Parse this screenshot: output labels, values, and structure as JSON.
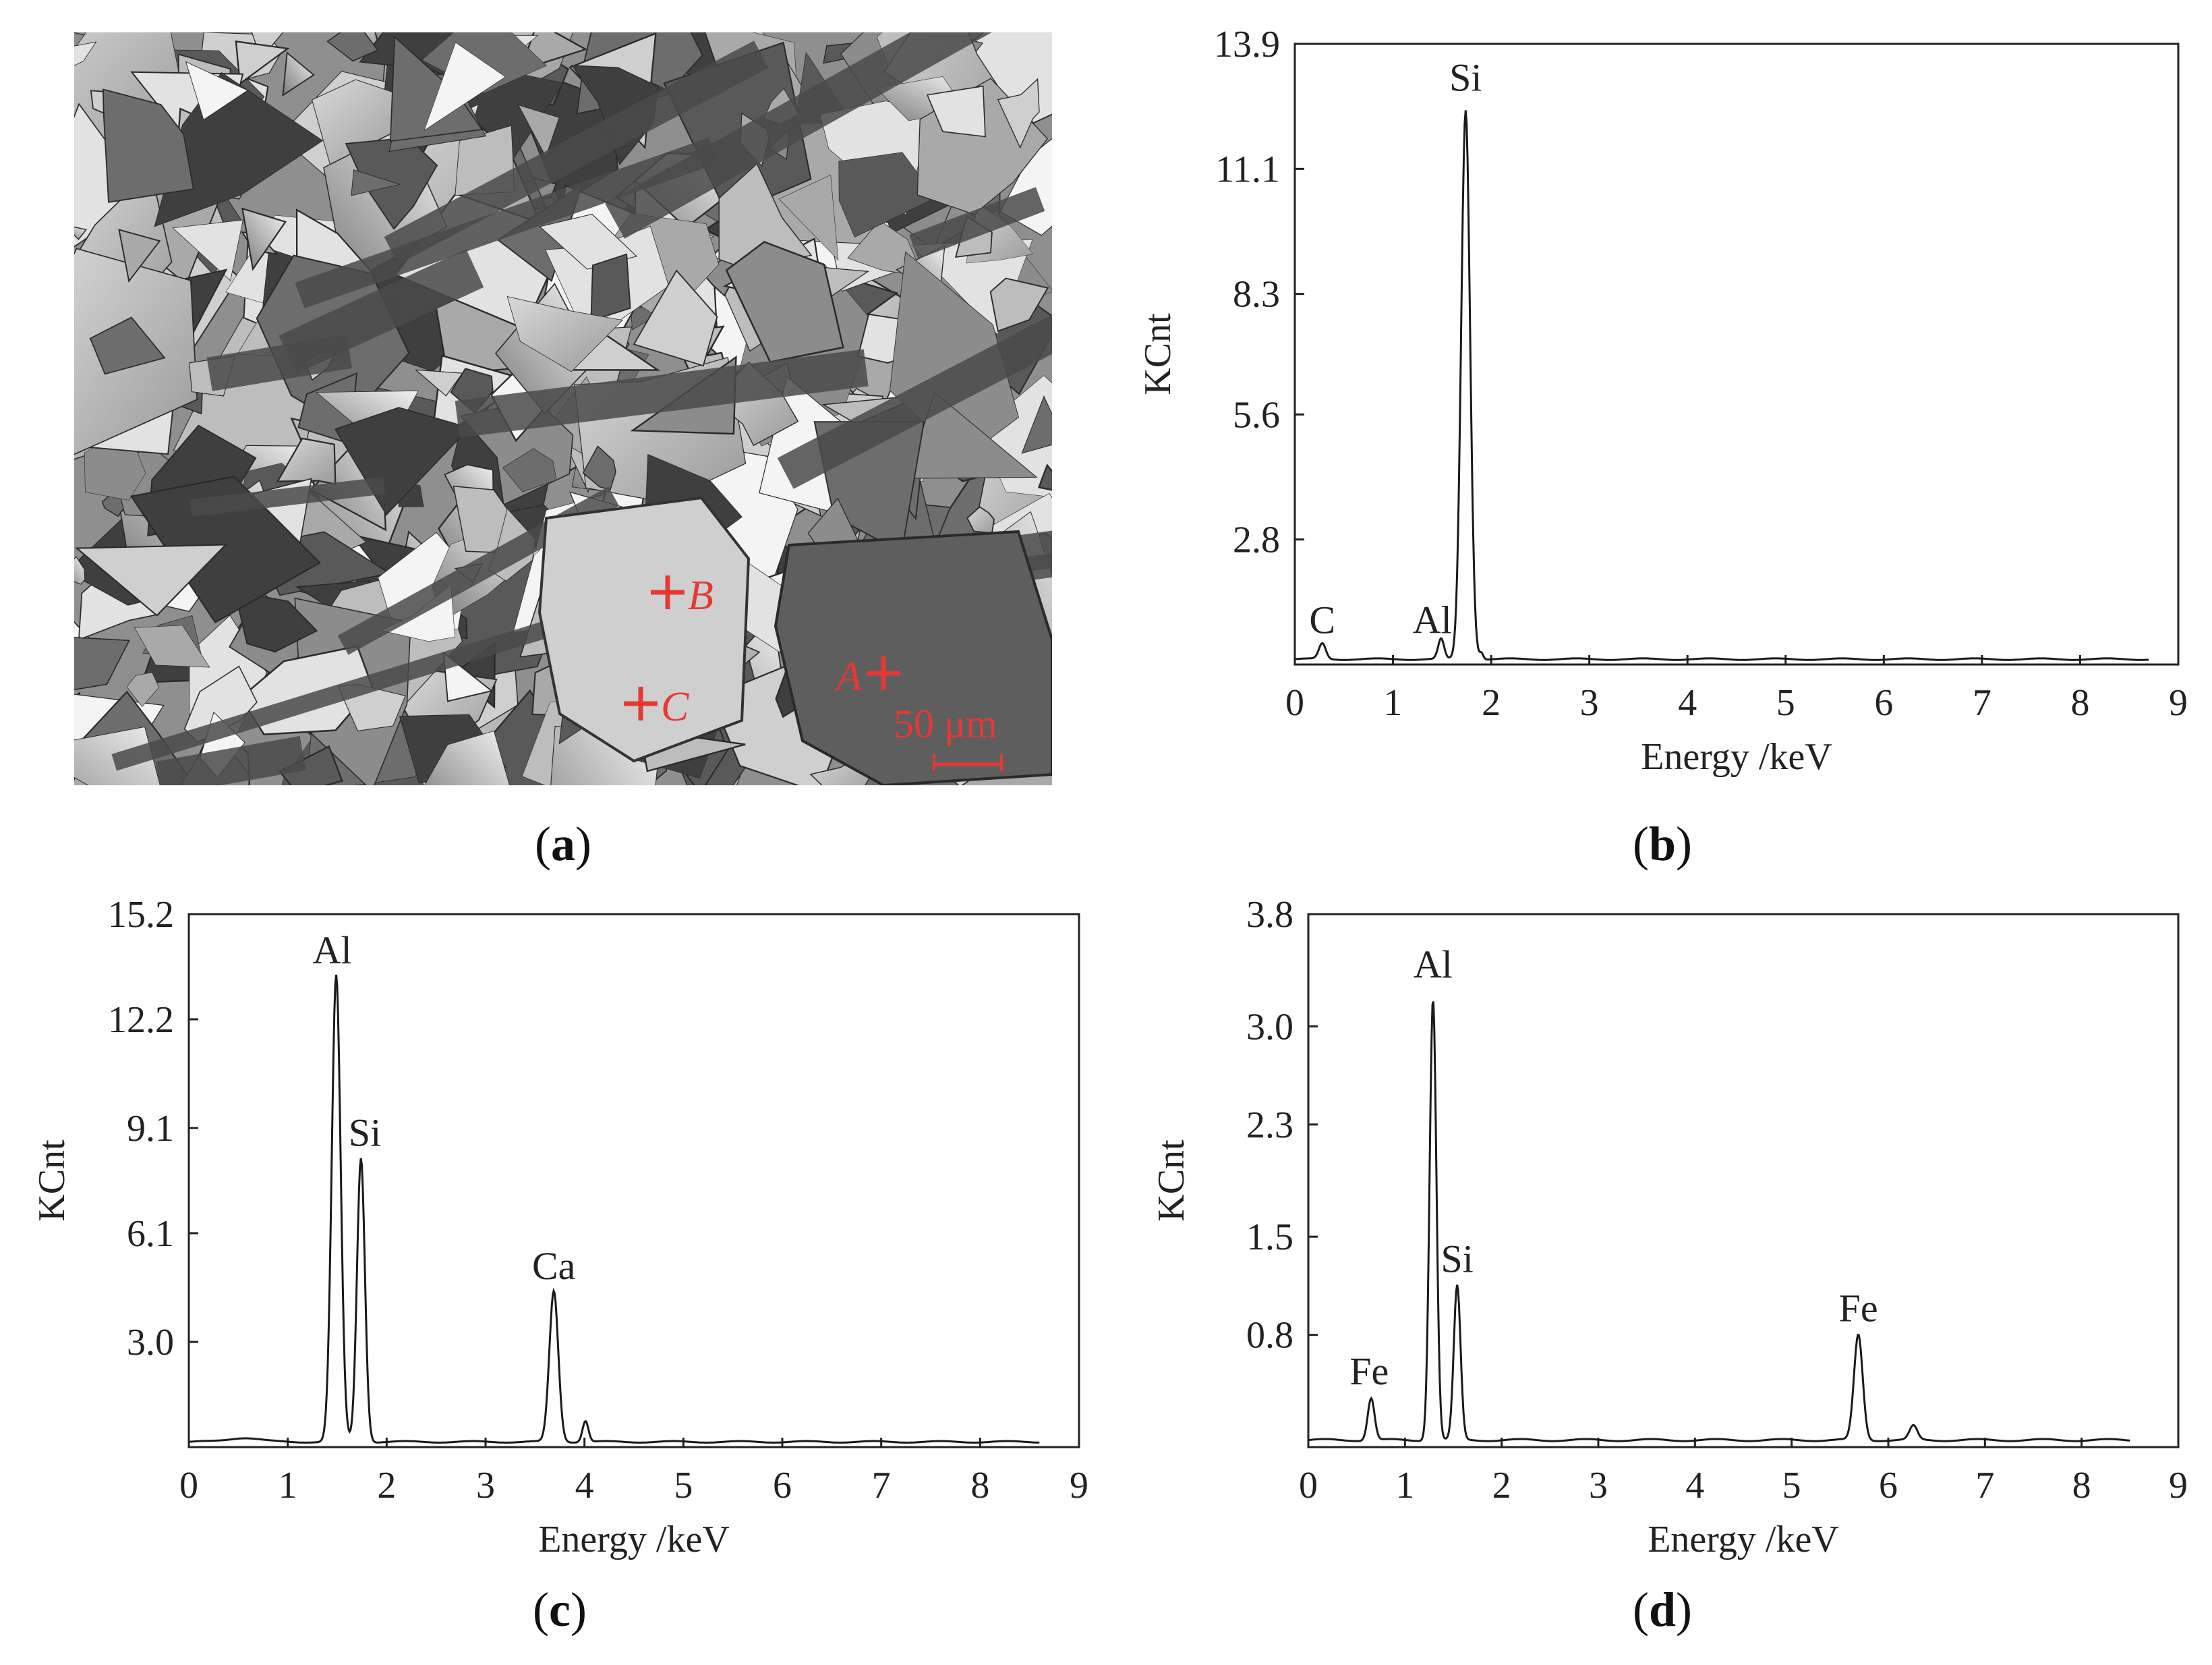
{
  "panels": {
    "a": {
      "caption_letter": "a",
      "markers": [
        "B",
        "C",
        "A"
      ],
      "scale_bar": "50 μm",
      "marker_color": "#e53935"
    },
    "b": {
      "caption_letter": "b"
    },
    "c": {
      "caption_letter": "c"
    },
    "d": {
      "caption_letter": "d"
    }
  },
  "chart_data": [
    {
      "id": "b",
      "type": "line",
      "xlabel": "Energy /keV",
      "ylabel": "KCnt",
      "xlim": [
        0,
        9
      ],
      "ylim": [
        0,
        13.9
      ],
      "xticks": [
        0,
        1,
        2,
        3,
        4,
        5,
        6,
        7,
        8,
        9
      ],
      "yticks": [
        2.8,
        5.6,
        8.3,
        11.1,
        13.9
      ],
      "x_end": 8.7,
      "baseline": 0.12,
      "peaks": [
        {
          "x": 0.28,
          "height": 0.35,
          "width": 0.035
        },
        {
          "x": 1.49,
          "height": 0.45,
          "width": 0.03
        },
        {
          "x": 1.74,
          "height": 12.3,
          "width": 0.045
        },
        {
          "x": 1.9,
          "height": 0.15,
          "width": 0.02
        }
      ],
      "annotations": [
        {
          "label": "C",
          "x": 0.28,
          "y": 0.55
        },
        {
          "label": "Al",
          "x": 1.4,
          "y": 0.55
        },
        {
          "label": "Si",
          "x": 1.74,
          "y": 12.7
        }
      ]
    },
    {
      "id": "c",
      "type": "line",
      "xlabel": "Energy /keV",
      "ylabel": "KCnt",
      "xlim": [
        0,
        9
      ],
      "ylim": [
        0,
        15.2
      ],
      "xticks": [
        0,
        1,
        2,
        3,
        4,
        5,
        6,
        7,
        8,
        9
      ],
      "yticks": [
        3.0,
        6.1,
        9.1,
        12.2,
        15.2
      ],
      "x_end": 8.6,
      "baseline": 0.15,
      "peaks": [
        {
          "x": 0.55,
          "height": 0.12,
          "width": 0.15
        },
        {
          "x": 1.49,
          "height": 13.3,
          "width": 0.045
        },
        {
          "x": 1.74,
          "height": 8.1,
          "width": 0.04
        },
        {
          "x": 3.69,
          "height": 4.3,
          "width": 0.045
        },
        {
          "x": 4.01,
          "height": 0.6,
          "width": 0.03
        }
      ],
      "annotations": [
        {
          "label": "Al",
          "x": 1.45,
          "y": 13.6
        },
        {
          "label": "Si",
          "x": 1.78,
          "y": 8.4
        },
        {
          "label": "Ca",
          "x": 3.69,
          "y": 4.6
        }
      ]
    },
    {
      "id": "d",
      "type": "line",
      "xlabel": "Energy /keV",
      "ylabel": "KCnt",
      "xlim": [
        0,
        9
      ],
      "ylim": [
        0,
        3.8
      ],
      "xticks": [
        0,
        1,
        2,
        3,
        4,
        5,
        6,
        7,
        8,
        9
      ],
      "yticks": [
        0.8,
        1.5,
        2.3,
        3.0,
        3.8
      ],
      "x_end": 8.5,
      "baseline": 0.05,
      "peaks": [
        {
          "x": 0.65,
          "height": 0.3,
          "width": 0.035
        },
        {
          "x": 1.29,
          "height": 3.15,
          "width": 0.035
        },
        {
          "x": 1.54,
          "height": 1.1,
          "width": 0.035
        },
        {
          "x": 5.69,
          "height": 0.75,
          "width": 0.045
        },
        {
          "x": 6.26,
          "height": 0.1,
          "width": 0.04
        }
      ],
      "annotations": [
        {
          "label": "Fe",
          "x": 0.63,
          "y": 0.4
        },
        {
          "label": "Al",
          "x": 1.29,
          "y": 3.3
        },
        {
          "label": "Si",
          "x": 1.54,
          "y": 1.2
        },
        {
          "label": "Fe",
          "x": 5.69,
          "y": 0.85
        }
      ]
    }
  ]
}
